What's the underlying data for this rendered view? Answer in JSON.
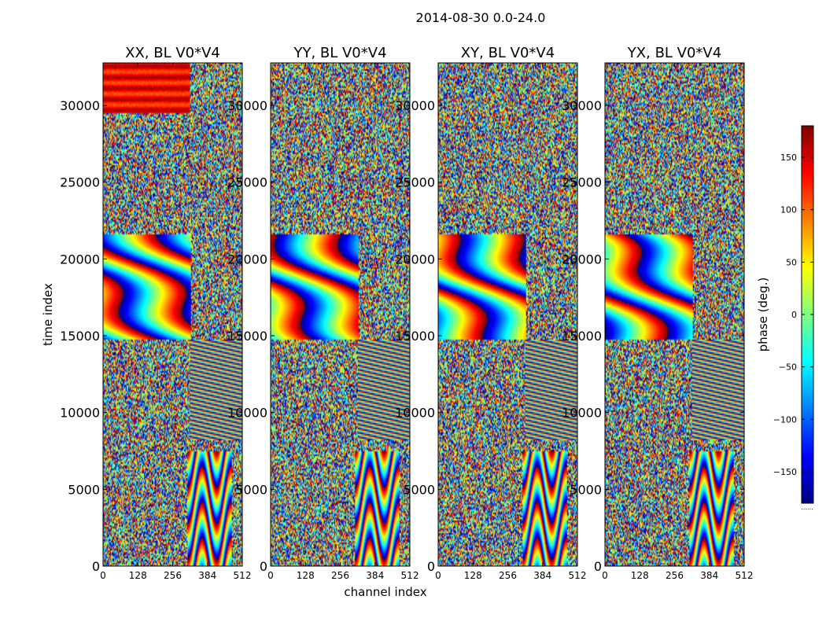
{
  "figure": {
    "suptitle": "2014-08-30 0.0-24.0",
    "xlabel": "channel index",
    "ylabel": "time index"
  },
  "colorbar": {
    "label": "phase (deg.)",
    "ticks": [
      150,
      100,
      50,
      0,
      -50,
      -100,
      -150
    ],
    "tick_labels": [
      "150",
      "100",
      "50",
      "0",
      "−50",
      "−100",
      "−150"
    ],
    "range": [
      -180,
      180
    ],
    "colormap": "jet",
    "colormap_stops": [
      "#00007f",
      "#0000ff",
      "#007fff",
      "#00ffff",
      "#7fff7f",
      "#ffff00",
      "#ff7f00",
      "#ff0000",
      "#7f0000"
    ],
    "footer": "......"
  },
  "chart_data": {
    "type": "heatmap",
    "description_units": "phase in degrees, wrapped -180..180",
    "xlim": [
      0,
      512
    ],
    "ylim": [
      0,
      32768
    ],
    "x_ticks": [
      0,
      128,
      256,
      384,
      512
    ],
    "x_tick_labels": [
      "0",
      "128",
      "256",
      "384",
      "512"
    ],
    "y_ticks": [
      0,
      5000,
      10000,
      15000,
      20000,
      25000,
      30000
    ],
    "y_tick_labels": [
      "0",
      "5000",
      "10000",
      "15000",
      "20000",
      "25000",
      "30000"
    ],
    "panels": [
      {
        "title": "XX, BL V0*V4",
        "polarization": "XX",
        "baseline": "V0*V4"
      },
      {
        "title": "YY, BL V0*V4",
        "polarization": "YY",
        "baseline": "V0*V4"
      },
      {
        "title": "XY, BL V0*V4",
        "polarization": "XY",
        "baseline": "V0*V4"
      },
      {
        "title": "YX, BL V0*V4",
        "polarization": "YX",
        "baseline": "V0*V4"
      }
    ]
  }
}
